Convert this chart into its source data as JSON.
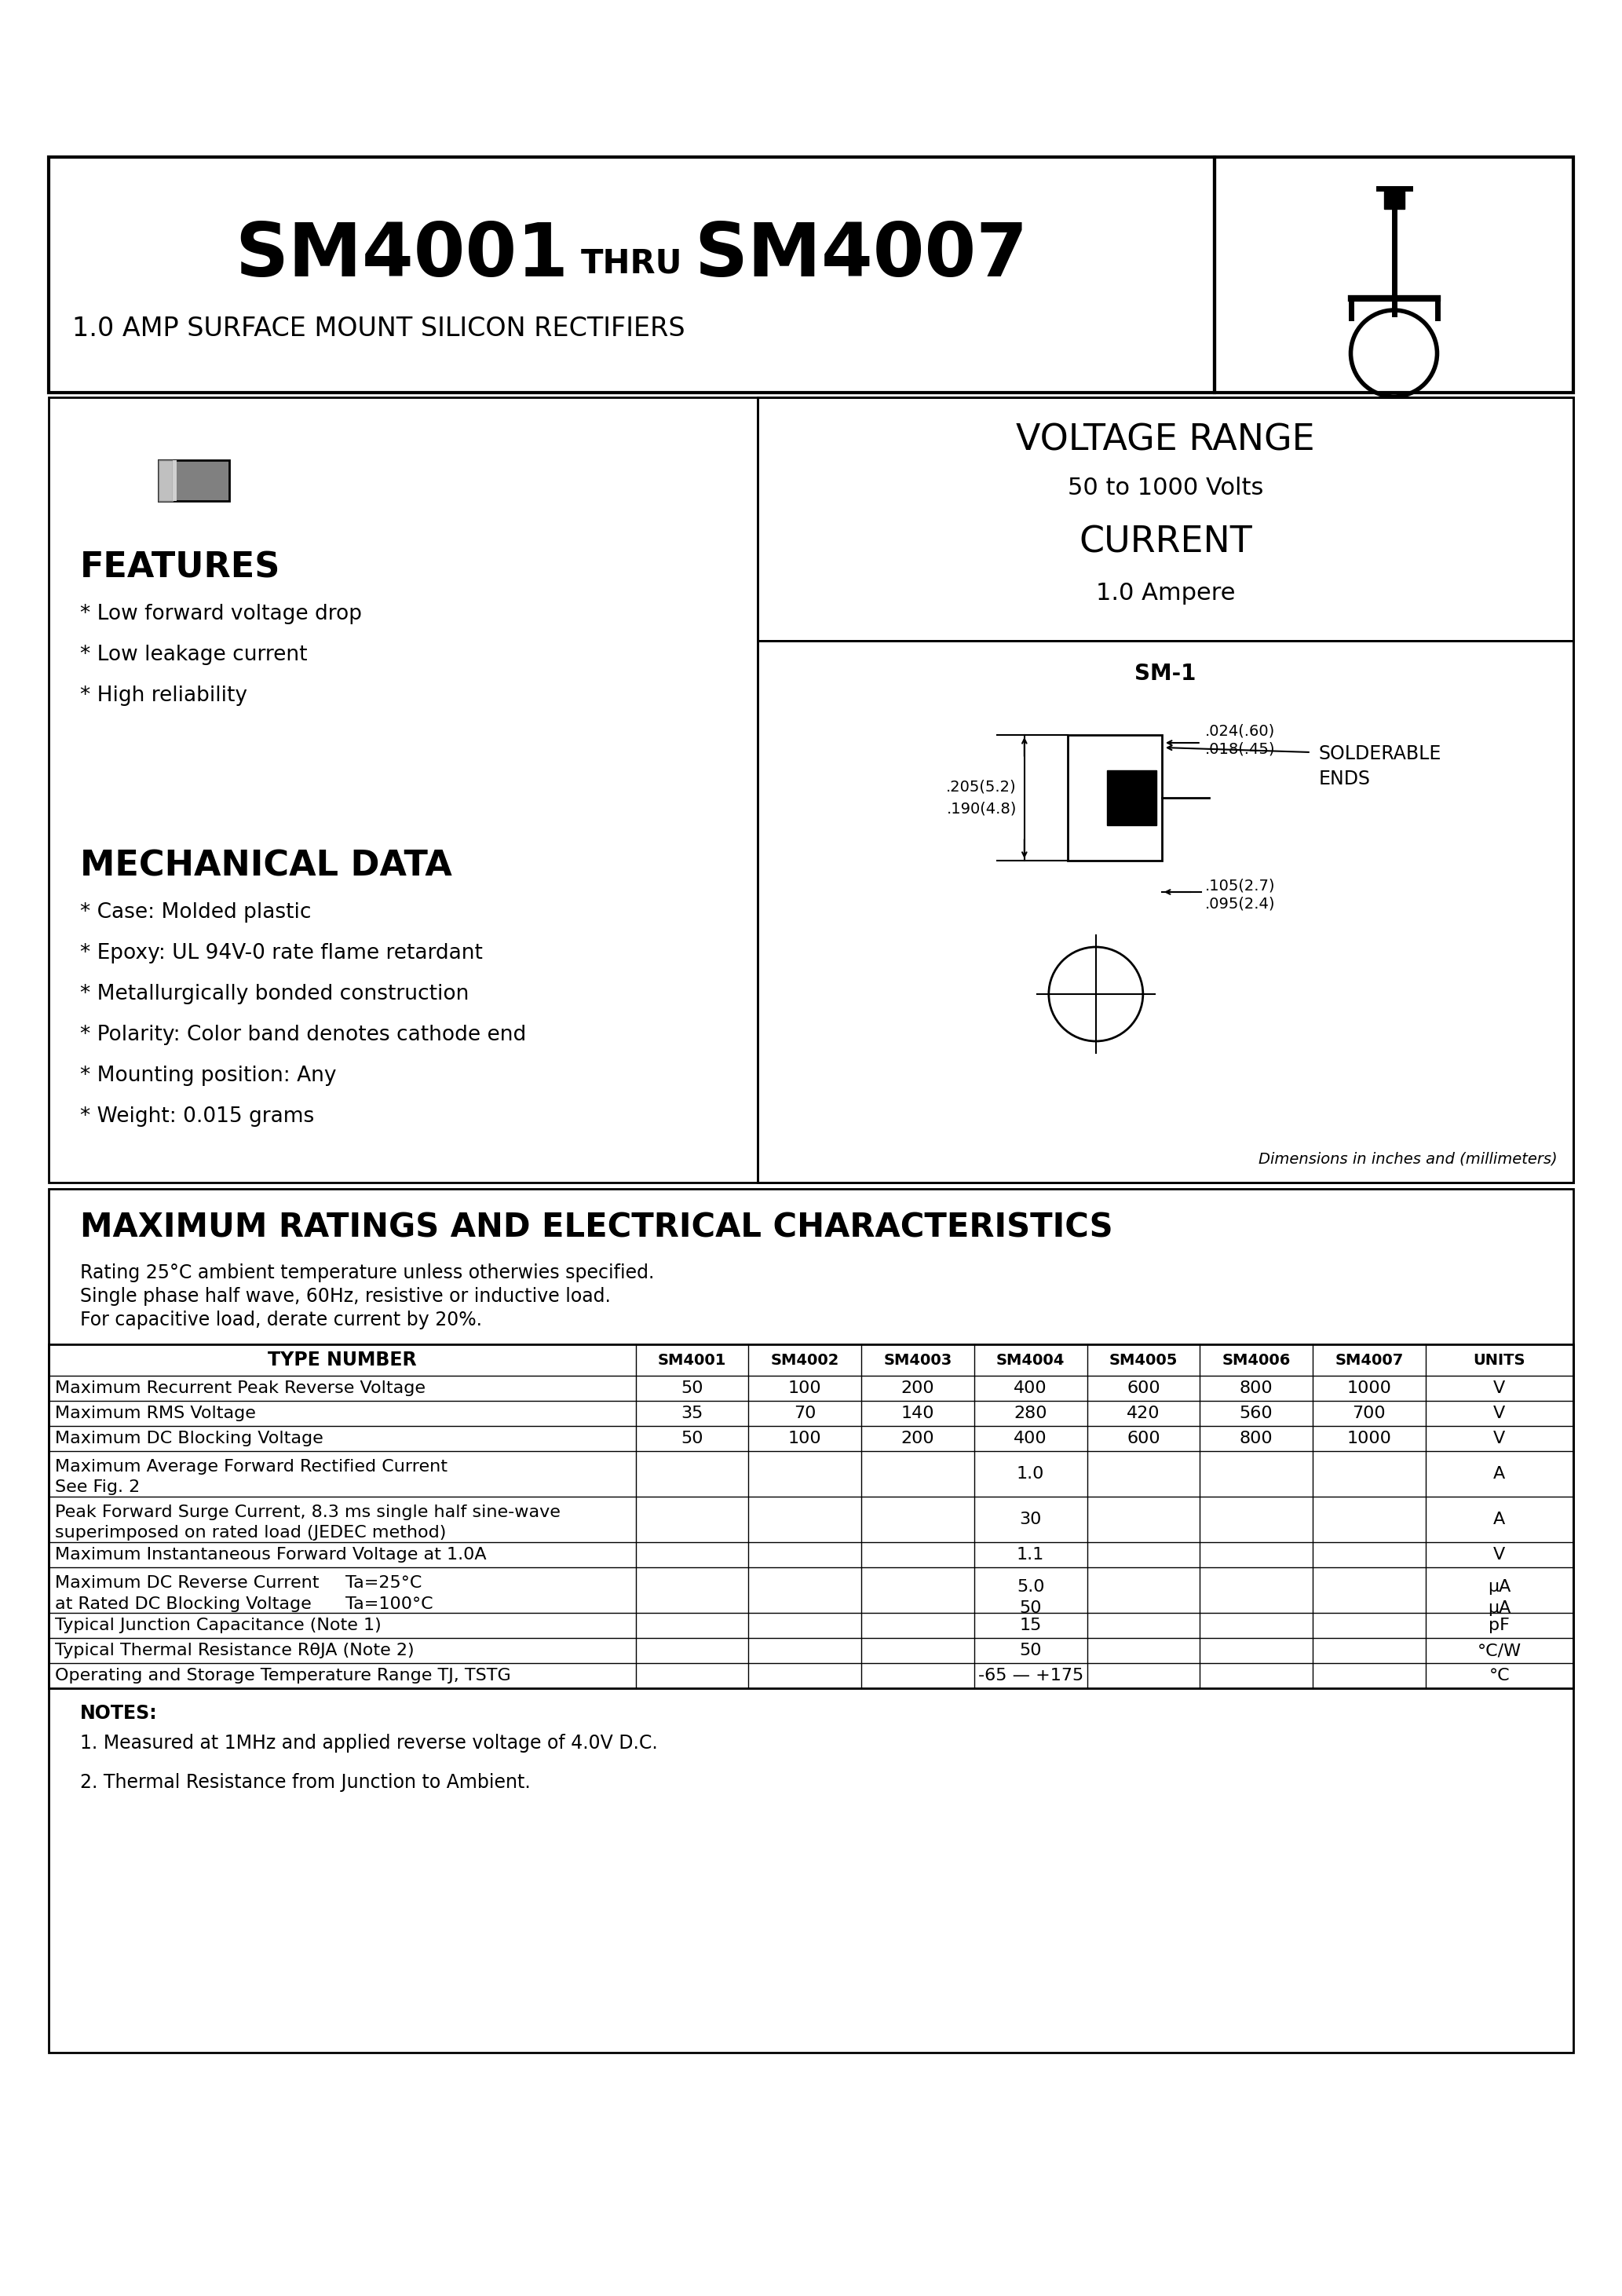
{
  "title_main": "SM4001",
  "title_thru": "THRU",
  "title_end": "SM4007",
  "subtitle": "1.0 AMP SURFACE MOUNT SILICON RECTIFIERS",
  "voltage_range_title": "VOLTAGE RANGE",
  "voltage_range_val": "50 to 1000 Volts",
  "current_title": "CURRENT",
  "current_val": "1.0 Ampere",
  "features_title": "FEATURES",
  "features": [
    "* Low forward voltage drop",
    "* Low leakage current",
    "* High reliability"
  ],
  "mech_title": "MECHANICAL DATA",
  "mech": [
    "* Case: Molded plastic",
    "* Epoxy: UL 94V-0 rate flame retardant",
    "* Metallurgically bonded construction",
    "* Polarity: Color band denotes cathode end",
    "* Mounting position: Any",
    "* Weight: 0.015 grams"
  ],
  "pkg_label": "SM-1",
  "dim1a": ".205(5.2)",
  "dim1b": ".190(4.8)",
  "dim2a": ".024(.60)",
  "dim2b": ".018(.45)",
  "dim3a": ".105(2.7)",
  "dim3b": ".095(2.4)",
  "dim_note": "Dimensions in inches and (millimeters)",
  "solderable_ends": "SOLDERABLE\nENDS",
  "max_ratings_title": "MAXIMUM RATINGS AND ELECTRICAL CHARACTERISTICS",
  "ratings_note1": "Rating 25°C ambient temperature unless otherwies specified.",
  "ratings_note2": "Single phase half wave, 60Hz, resistive or inductive load.",
  "ratings_note3": "For capacitive load, derate current by 20%.",
  "table_headers": [
    "TYPE NUMBER",
    "SM4001",
    "SM4002",
    "SM4003",
    "SM4004",
    "SM4005",
    "SM4006",
    "SM4007",
    "UNITS"
  ],
  "table_row0": [
    "Maximum Recurrent Peak Reverse Voltage",
    "50",
    "100",
    "200",
    "400",
    "600",
    "800",
    "1000",
    "V"
  ],
  "table_row1": [
    "Maximum RMS Voltage",
    "35",
    "70",
    "140",
    "280",
    "420",
    "560",
    "700",
    "V"
  ],
  "table_row2": [
    "Maximum DC Blocking Voltage",
    "50",
    "100",
    "200",
    "400",
    "600",
    "800",
    "1000",
    "V"
  ],
  "table_row3a": "Maximum Average Forward Rectified Current",
  "table_row3b": "See Fig. 2",
  "table_row3val": "1.0",
  "table_row3unit": "A",
  "table_row4a": "Peak Forward Surge Current, 8.3 ms single half sine-wave",
  "table_row4b": "superimposed on rated load (JEDEC method)",
  "table_row4val": "30",
  "table_row4unit": "A",
  "table_row5": [
    "Maximum Instantaneous Forward Voltage at 1.0A",
    "",
    "",
    "",
    "1.1",
    "",
    "",
    "",
    "V"
  ],
  "table_row6a": "Maximum DC Reverse Current",
  "table_row6ta": "Ta=25°C",
  "table_row6val_a": "5.0",
  "table_row6unit_a": "μA",
  "table_row6b": "at Rated DC Blocking Voltage",
  "table_row6tb": "Ta=100°C",
  "table_row6val_b": "50",
  "table_row6unit_b": "μA",
  "table_row7": [
    "Typical Junction Capacitance (Note 1)",
    "",
    "",
    "",
    "15",
    "",
    "",
    "",
    "pF"
  ],
  "table_row8": [
    "Typical Thermal Resistance RθJA (Note 2)",
    "",
    "",
    "",
    "50",
    "",
    "",
    "",
    "°C/W"
  ],
  "table_row9": [
    "Operating and Storage Temperature Range TJ, TSTG",
    "",
    "",
    "",
    "-65 — +175",
    "",
    "",
    "",
    "°C"
  ],
  "notes_title": "NOTES:",
  "note1": "1. Measured at 1MHz and applied reverse voltage of 4.0V D.C.",
  "note2": "2. Thermal Resistance from Junction to Ambient."
}
